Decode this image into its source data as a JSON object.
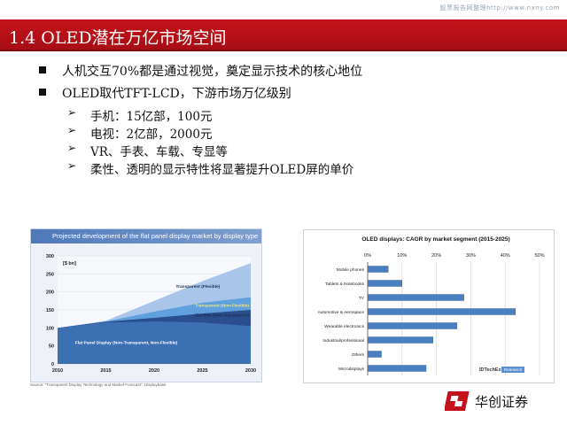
{
  "watermark": "股票报告网整理http://www.nxny.com",
  "title": "1.4 OLED潜在万亿市场空间",
  "bullets": [
    {
      "text": "人机交互70%都是通过视觉，奠定显示技术的核心地位"
    },
    {
      "text": "OLED取代TFT-LCD，下游市场万亿级别",
      "subs": [
        "手机：15亿部，100元",
        "电视：2亿部，2000元",
        "VR、手表、车载、专显等",
        "柔性、透明的显示特性将显著提升OLED屏的单价"
      ]
    }
  ],
  "sub_marker": "➢",
  "left_chart": {
    "header": "Projected development of the flat panel display market by display type",
    "source": "Source: \"Transparent Display Technology and Market Forecast\", Displaybank",
    "chart_data": {
      "type": "area",
      "title": "Projected development of the flat panel display market by display type",
      "ylabel": "[$ bn]",
      "x": [
        2010,
        2015,
        2020,
        2025,
        2030
      ],
      "ylim": [
        0,
        300
      ],
      "yticks": [
        0,
        50,
        100,
        150,
        200,
        250,
        300
      ],
      "series": [
        {
          "name": "Flat Panel Display (Non-Transparent, Non-Flexible)",
          "values": [
            100,
            115,
            118,
            115,
            105
          ]
        },
        {
          "name": "Flexible (Non-Transparent)",
          "values": [
            100,
            117,
            128,
            140,
            150
          ]
        },
        {
          "name": "Transparent (Non-Flexible)",
          "values": [
            100,
            118,
            145,
            170,
            185
          ]
        },
        {
          "name": "Transparent (Flexible)",
          "values": [
            100,
            120,
            175,
            230,
            280
          ]
        }
      ],
      "colors": [
        "#3d6fb3",
        "#2a4f8c",
        "#5fa0dd",
        "#a9c6ea"
      ]
    }
  },
  "right_chart": {
    "chart_data": {
      "type": "bar",
      "orientation": "horizontal",
      "title": "OLED displays: CAGR by market segment (2015-2025)",
      "categories": [
        "Mobile phones",
        "Tablets & Notebooks",
        "TV",
        "Automotive & Aerospace",
        "Wearable electronics",
        "Industrial/professional",
        "Others",
        "Microdisplays"
      ],
      "values": [
        6,
        10,
        28,
        43,
        26,
        19,
        4,
        17
      ],
      "xlim": [
        0,
        50
      ],
      "xticks": [
        0,
        10,
        20,
        30,
        40,
        50
      ],
      "xtick_labels": [
        "0%",
        "10%",
        "20%",
        "30%",
        "40%",
        "50%"
      ],
      "bar_color": "#4a7fc1",
      "watermark": "IDTechEx",
      "watermark_tag": "Research"
    }
  },
  "brand": {
    "name": "华创证券",
    "color": "#c4121a"
  }
}
